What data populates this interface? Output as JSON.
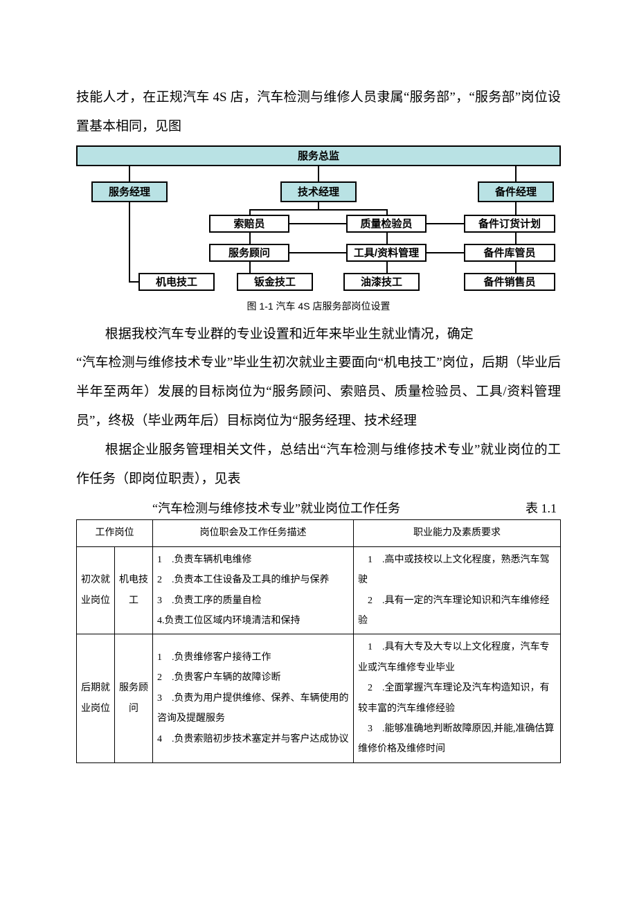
{
  "intro": {
    "p1": "技能人才，在正规汽车 4S 店，汽车检测与维修人员隶属“服务部”，“服务部”岗位设置基本相同，见图"
  },
  "orgchart": {
    "top": "服务总监",
    "managers": {
      "service": "服务经理",
      "tech": "技术经理",
      "parts": "备件经理"
    },
    "row2": {
      "claims": "索赔员",
      "qc": "质量检验员",
      "partsplan": "备件订货计划"
    },
    "row3": {
      "advisor": "服务顾问",
      "tools": "工具/资料管理",
      "stock": "备件库管员"
    },
    "row4": {
      "mech": "机电技工",
      "body": "钣金技工",
      "paint": "油漆技工",
      "partsales": "备件销售员"
    },
    "caption": "图 1-1 汽车 4S 店服务部岗位设置",
    "colors": {
      "nodeFill": "#b9e2e4",
      "border": "#000000"
    }
  },
  "para2": "根据我校汽车专业群的专业设置和近年来毕业生就业情况，确定",
  "para3": "“汽车检测与维修技术专业”毕业生初次就业主要面向“机电技工”岗位，后期（毕业后半年至两年）发展的目标岗位为“服务顾问、索赔员、质量检验员、工具/资料管理员”，终极（毕业两年后）目标岗位为“服务经理、技术经理",
  "para4": "根据企业服务管理相关文件，总结出“汽车检测与维修技术专业”就业岗位的工作任务（即岗位职责），见表",
  "table": {
    "title": "“汽车检测与维修技术专业”就业岗位工作任务",
    "label": "表 1.1",
    "headers": {
      "col1": "工作岗位",
      "col2": "岗位职会及工作任务描述",
      "col3": "职业能力及素质要求"
    },
    "rows": [
      {
        "stage": "初次就业岗位",
        "role": "机电技工",
        "tasks": "1　.负责车辆机电维修\n2　.负责本工住设备及工具的维护与保养\n3　.负责工序的质量自检\n4.负责工位区域内环境清洁和保持",
        "reqs": "　1　.高中或技校以上文化程度，熟悉汽车驾驶\n　2　.具有一定的汽车理论知识和汽车维修经验"
      },
      {
        "stage": "后期就业岗位",
        "role": "服务顾问",
        "tasks": "1　.负贵维修客户接待工作\n2　.负贵客户车辆的故障诊断\n3　.负责为用户提供维修、保养、车辆使用的咨询及提醒服务\n4　.负贵索赔初步技术塞定并与客户达成协议",
        "reqs": "　1　.具有大专及大专以上文化程度，汽车专业或汽车维修专业毕业\n　2　.全面掌握汽车理论及汽车构造知识，有较丰富的汽车维修经验\n　3　.能够准确地判断故障原因,并能,准确估算维修价格及维修时间"
      }
    ]
  }
}
